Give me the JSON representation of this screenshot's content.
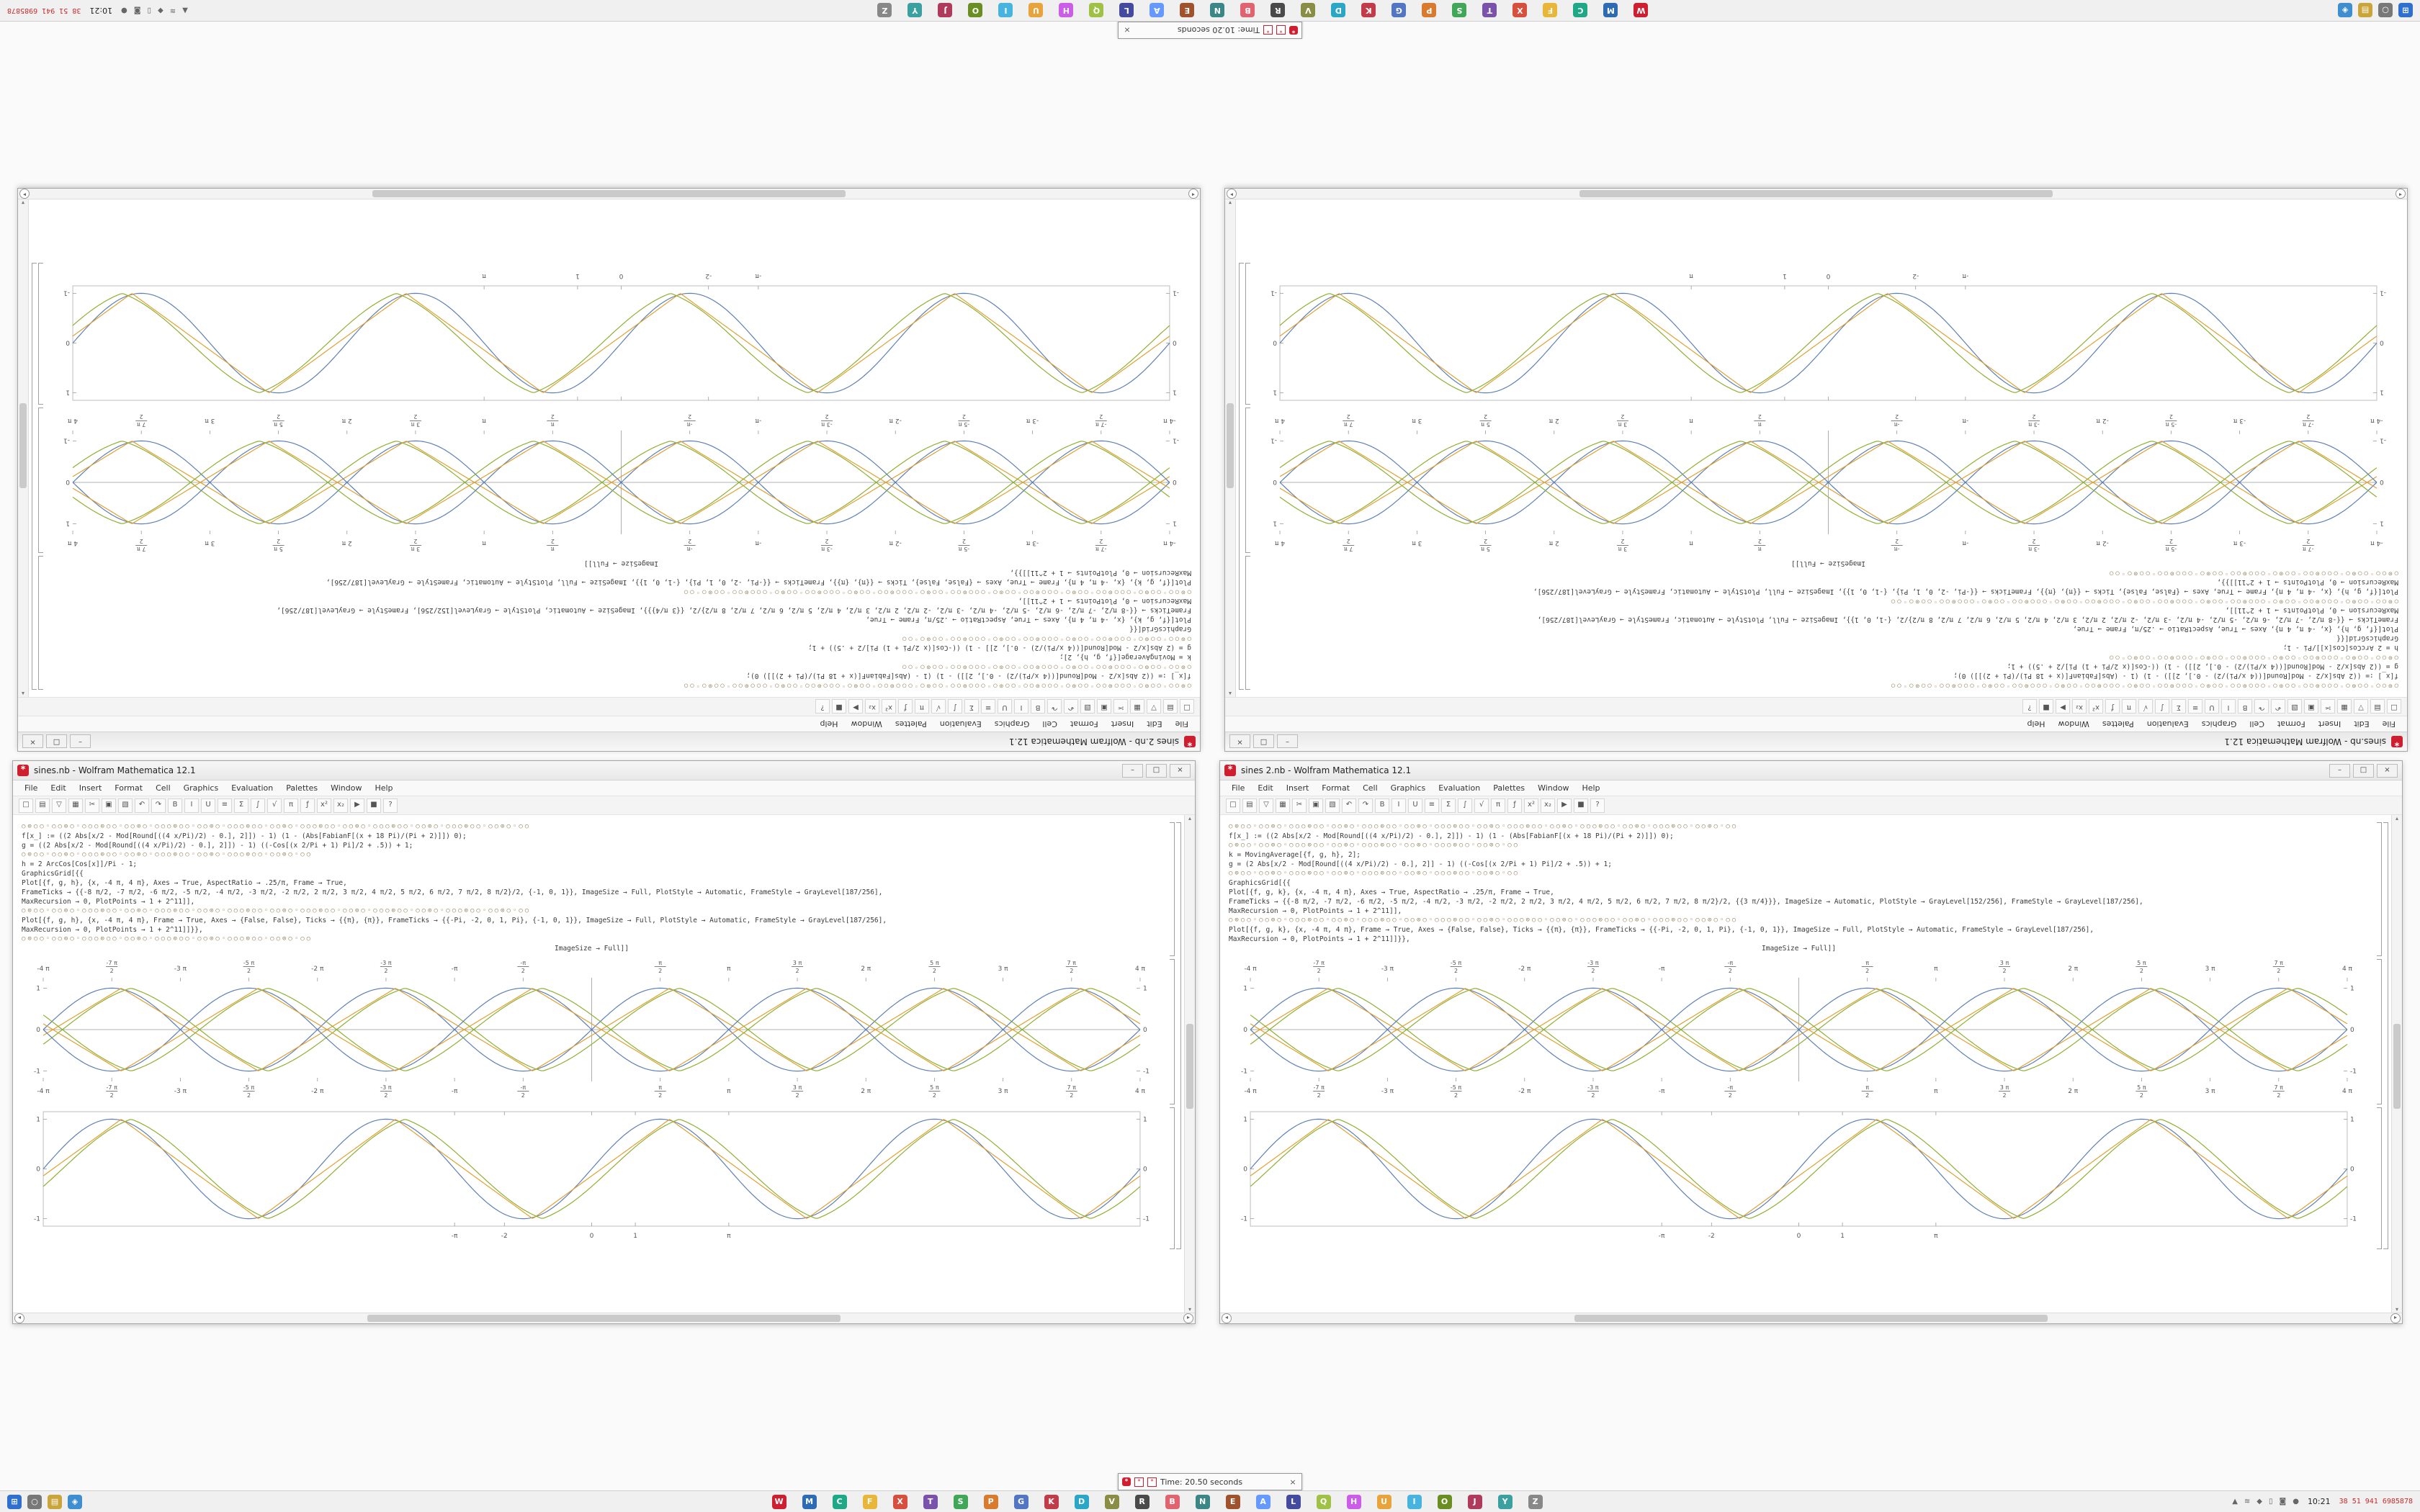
{
  "dialogs": {
    "bottom": {
      "title": "Time: 20.50 seconds"
    },
    "top": {
      "title": "Time: 10.20 seconds"
    },
    "close_glyph": "×",
    "spikey_glyph": "*"
  },
  "taskbar": {
    "left_icons": [
      {
        "name": "start-icon",
        "glyph": "⊞",
        "color": "#2f6fce"
      },
      {
        "name": "search-icon",
        "glyph": "○",
        "color": "#787878"
      },
      {
        "name": "files-icon",
        "glyph": "▤",
        "color": "#caa53a"
      },
      {
        "name": "browser-icon",
        "glyph": "◈",
        "color": "#3f8fd0"
      }
    ],
    "app_icons": [
      {
        "name": "taskbar-app-wolfram",
        "glyph": "W",
        "color": "#cf1e2f"
      },
      {
        "name": "taskbar-app-2",
        "glyph": "M",
        "color": "#2d6cb5"
      },
      {
        "name": "taskbar-app-3",
        "glyph": "C",
        "color": "#1fa885"
      },
      {
        "name": "taskbar-app-4",
        "glyph": "F",
        "color": "#e8b73a"
      },
      {
        "name": "taskbar-app-5",
        "glyph": "X",
        "color": "#d94f3d"
      },
      {
        "name": "taskbar-app-6",
        "glyph": "T",
        "color": "#7b52ab"
      },
      {
        "name": "taskbar-app-7",
        "glyph": "S",
        "color": "#3fa757"
      },
      {
        "name": "taskbar-app-8",
        "glyph": "P",
        "color": "#d97b2e"
      },
      {
        "name": "taskbar-app-9",
        "glyph": "G",
        "color": "#5276c3"
      },
      {
        "name": "taskbar-app-10",
        "glyph": "K",
        "color": "#c23b49"
      },
      {
        "name": "taskbar-app-11",
        "glyph": "D",
        "color": "#2aa7c7"
      },
      {
        "name": "taskbar-app-12",
        "glyph": "V",
        "color": "#8a8d44"
      },
      {
        "name": "taskbar-app-13",
        "glyph": "R",
        "color": "#4a4a4a"
      },
      {
        "name": "taskbar-app-14",
        "glyph": "B",
        "color": "#e0636f"
      },
      {
        "name": "taskbar-app-15",
        "glyph": "N",
        "color": "#3b8686"
      },
      {
        "name": "taskbar-app-16",
        "glyph": "E",
        "color": "#a0522d"
      },
      {
        "name": "taskbar-app-17",
        "glyph": "A",
        "color": "#6699ff"
      },
      {
        "name": "taskbar-app-18",
        "glyph": "L",
        "color": "#444a9f"
      },
      {
        "name": "taskbar-app-19",
        "glyph": "Q",
        "color": "#9fc246"
      },
      {
        "name": "taskbar-app-20",
        "glyph": "H",
        "color": "#cc5de8"
      },
      {
        "name": "taskbar-app-21",
        "glyph": "U",
        "color": "#e8a33a"
      },
      {
        "name": "taskbar-app-22",
        "glyph": "I",
        "color": "#47b4e0"
      },
      {
        "name": "taskbar-app-23",
        "glyph": "O",
        "color": "#6b8e23"
      },
      {
        "name": "taskbar-app-24",
        "glyph": "J",
        "color": "#b03a5b"
      },
      {
        "name": "taskbar-app-25",
        "glyph": "Y",
        "color": "#3aa0a0"
      },
      {
        "name": "taskbar-app-26",
        "glyph": "Z",
        "color": "#888888"
      }
    ],
    "tray_icons": [
      {
        "name": "tray-up-icon",
        "glyph": "▲"
      },
      {
        "name": "network-icon",
        "glyph": "≋"
      },
      {
        "name": "volume-icon",
        "glyph": "◆"
      },
      {
        "name": "battery-icon",
        "glyph": "▯"
      },
      {
        "name": "shield-icon",
        "glyph": "◙"
      },
      {
        "name": "update-icon",
        "glyph": "●"
      }
    ],
    "clock": "10:21",
    "stats": "38 51 941 6985878"
  },
  "window_chrome": {
    "menu": [
      "File",
      "Edit",
      "Insert",
      "Format",
      "Cell",
      "Graphics",
      "Evaluation",
      "Palettes",
      "Window",
      "Help"
    ],
    "toolbar_icons": [
      {
        "name": "new-notebook-icon",
        "glyph": "□"
      },
      {
        "name": "open-icon",
        "glyph": "▤"
      },
      {
        "name": "save-icon",
        "glyph": "▽"
      },
      {
        "name": "print-icon",
        "glyph": "▦"
      },
      {
        "name": "cut-icon",
        "glyph": "✂"
      },
      {
        "name": "copy-icon",
        "glyph": "▣"
      },
      {
        "name": "paste-icon",
        "glyph": "▧"
      },
      {
        "name": "undo-icon",
        "glyph": "↶"
      },
      {
        "name": "redo-icon",
        "glyph": "↷"
      },
      {
        "name": "bold-icon",
        "glyph": "B"
      },
      {
        "name": "italic-icon",
        "glyph": "I"
      },
      {
        "name": "underline-icon",
        "glyph": "U"
      },
      {
        "name": "align-icon",
        "glyph": "≡"
      },
      {
        "name": "sum-icon",
        "glyph": "Σ"
      },
      {
        "name": "integral-icon",
        "glyph": "∫"
      },
      {
        "name": "sqrt-icon",
        "glyph": "√"
      },
      {
        "name": "pi-icon",
        "glyph": "π"
      },
      {
        "name": "function-icon",
        "glyph": "ƒ"
      },
      {
        "name": "superscript-icon",
        "glyph": "x²"
      },
      {
        "name": "subscript-icon",
        "glyph": "x₂"
      },
      {
        "name": "evaluate-icon",
        "glyph": "▶"
      },
      {
        "name": "abort-icon",
        "glyph": "■"
      },
      {
        "name": "help-icon",
        "glyph": "?"
      }
    ],
    "window_buttons": [
      {
        "name": "minimize-button",
        "glyph": "–"
      },
      {
        "name": "maximize-button",
        "glyph": "□"
      },
      {
        "name": "close-button",
        "glyph": "×"
      }
    ],
    "scroll_up_glyph": "▴",
    "scroll_down_glyph": "▾",
    "scroll_left_glyph": "◂",
    "scroll_right_glyph": "▸"
  },
  "windows": [
    {
      "title": "sines.nb - Wolfram Mathematica 12.1",
      "code": [
        {
          "kind": "beads",
          "t": "○⊙○○◦○○⊙○◦○○○⊙○○◦○○⊙○◦○○○⊙○○◦○○⊙○◦○○○⊙○○◦○○⊙○◦○○○⊙○○◦○○⊙○◦○○○⊙○○◦○○⊙○◦○○○⊙○○◦○○⊙○◦○○"
        },
        {
          "kind": "code",
          "t": "f[x_] := ((2 Abs[x/2 - Mod[Round[((4 x/Pi)/2) - 0.], 2]]) - 1) (1 - (Abs[FabianF[(x + 18 Pi)/(Pi + 2)]]) 0);"
        },
        {
          "kind": "code",
          "t": "g = ((2 Abs[x/2 - Mod[Round[((4 x/Pi)/2) - 0.], 2]]) - 1) ((-Cos[(x 2/Pi + 1) Pi]/2 + .5)) + 1;"
        },
        {
          "kind": "beads",
          "t": "○⊙○○◦○○⊙○◦○○○⊙○○◦○○⊙○◦○○○⊙○○◦○○⊙○◦○○○⊙○○◦○○⊙○◦○○"
        },
        {
          "kind": "code",
          "t": "h = 2 ArcCos[Cos[x]]/Pi - 1;"
        },
        {
          "kind": "code",
          "t": "GraphicsGrid[{{"
        },
        {
          "kind": "code",
          "t": "Plot[{f, g, h}, {x, -4 π, 4 π}, Axes → True, AspectRatio → .25/π, Frame → True,"
        },
        {
          "kind": "code",
          "t": "FrameTicks → {{-8 π/2, -7 π/2, -6 π/2, -5 π/2, -4 π/2, -3 π/2, -2 π/2, 2 π/2, 3 π/2, 4 π/2, 5 π/2, 6 π/2, 7 π/2, 8 π/2}/2, {-1, 0, 1}}, ImageSize → Full, PlotStyle → Automatic, FrameStyle → GrayLevel[187/256],"
        },
        {
          "kind": "code",
          "t": "MaxRecursion → 0, PlotPoints → 1 + 2^11]],"
        },
        {
          "kind": "beads",
          "t": "○⊙○○◦○○⊙○◦○○○⊙○○◦○○⊙○◦○○○⊙○○◦○○⊙○◦○○○⊙○○◦○○⊙○◦○○○⊙○○◦○○⊙○◦○○○⊙○○◦○○⊙○◦○○○⊙○○◦○○⊙○◦○○"
        },
        {
          "kind": "code",
          "t": "Plot[{f, g, h}, {x, -4 π, 4 π}, Frame → True, Axes → {False, False}, Ticks → {{π}, {π}}, FrameTicks → {{-Pi, -2, 0, 1, Pi}, {-1, 0, 1}}, ImageSize → Full, PlotStyle → Automatic, FrameStyle → GrayLevel[187/256],"
        },
        {
          "kind": "code",
          "t": "MaxRecursion → 0, PlotPoints → 1 + 2^11]]}},"
        },
        {
          "kind": "beads",
          "t": "○⊙○○◦○○⊙○◦○○○⊙○○◦○○⊙○◦○○○⊙○○◦○○⊙○◦○○○⊙○○◦○○⊙○◦○○"
        },
        {
          "kind": "tail",
          "t": "ImageSize → Full]]"
        }
      ]
    },
    {
      "title": "sines 2.nb - Wolfram Mathematica 12.1",
      "code": [
        {
          "kind": "beads",
          "t": "○⊙○○◦○○⊙○◦○○○⊙○○◦○○⊙○◦○○○⊙○○◦○○⊙○◦○○○⊙○○◦○○⊙○◦○○○⊙○○◦○○⊙○◦○○○⊙○○◦○○⊙○◦○○○⊙○○◦○○⊙○◦○○"
        },
        {
          "kind": "code",
          "t": "f[x_] := ((2 Abs[x/2 - Mod[Round[((4 x/Pi)/2) - 0.], 2]]) - 1) (1 - (Abs[FabianF[(x + 18 Pi)/(Pi + 2)]]) 0);"
        },
        {
          "kind": "beads",
          "t": "○⊙○○◦○○⊙○◦○○○⊙○○◦○○⊙○◦○○○⊙○○◦○○⊙○◦○○○⊙○○◦○○⊙○◦○○"
        },
        {
          "kind": "code",
          "t": "k = MovingAverage[{f, g, h}, 2];"
        },
        {
          "kind": "code",
          "t": "g = (2 Abs[x/2 - Mod[Round[((4 x/Pi)/2) - 0.], 2]] - 1) ((-Cos[(x 2/Pi + 1) Pi]/2 + .5)) + 1;"
        },
        {
          "kind": "beads",
          "t": "○⊙○○◦○○⊙○◦○○○⊙○○◦○○⊙○◦○○○⊙○○◦○○⊙○◦○○○⊙○○◦○○⊙○◦○○"
        },
        {
          "kind": "code",
          "t": "GraphicsGrid[{{"
        },
        {
          "kind": "code",
          "t": "Plot[{f, g, k}, {x, -4 π, 4 π}, Axes → True, AspectRatio → .25/π, Frame → True,"
        },
        {
          "kind": "code",
          "t": "FrameTicks → {{-8 π/2, -7 π/2, -6 π/2, -5 π/2, -4 π/2, -3 π/2, -2 π/2, 2 π/2, 3 π/2, 4 π/2, 5 π/2, 6 π/2, 7 π/2, 8 π/2}/2, {{3 π/4}}}, ImageSize → Automatic, PlotStyle → GrayLevel[152/256], FrameStyle → GrayLevel[187/256],"
        },
        {
          "kind": "code",
          "t": "MaxRecursion → 0, PlotPoints → 1 + 2^11]],"
        },
        {
          "kind": "beads",
          "t": "○⊙○○◦○○⊙○◦○○○⊙○○◦○○⊙○◦○○○⊙○○◦○○⊙○◦○○○⊙○○◦○○⊙○◦○○○⊙○○◦○○⊙○◦○○○⊙○○◦○○⊙○◦○○○⊙○○◦○○⊙○◦○○"
        },
        {
          "kind": "code",
          "t": "Plot[{f, g, k}, {x, -4 π, 4 π}, Frame → True, Axes → {False, False}, Ticks → {{π}, {π}}, FrameTicks → {{-Pi, -2, 0, 1, Pi}, {-1, 0, 1}}, ImageSize → Full, PlotStyle → Automatic, FrameStyle → GrayLevel[187/256],"
        },
        {
          "kind": "code",
          "t": "MaxRecursion → 0, PlotPoints → 1 + 2^11]]}},"
        },
        {
          "kind": "tail",
          "t": "ImageSize → Full]]"
        }
      ]
    }
  ],
  "chart_data": [
    {
      "type": "line",
      "title": "",
      "xlabel": "",
      "ylabel": "",
      "frame": false,
      "axes": true,
      "label_sides": [
        "top",
        "bottom"
      ],
      "x_range": [
        -12.566,
        12.566
      ],
      "y_range": [
        -1.25,
        1.25
      ],
      "samples": 480,
      "series": [
        {
          "name": "sin(x)",
          "fn": "sin",
          "sign": 1,
          "phase": 0,
          "color": "#5e81b5"
        },
        {
          "name": "triangle(x)",
          "fn": "tri",
          "sign": 1,
          "phase": -0.22,
          "color": "#e0a030"
        },
        {
          "name": "blend(x)",
          "fn": "mix",
          "sign": 1,
          "phase": -0.44,
          "color": "#8fb032"
        },
        {
          "name": "-sin(x)",
          "fn": "sin",
          "sign": -1,
          "phase": 0,
          "color": "#5e81b5"
        },
        {
          "name": "-triangle(x)",
          "fn": "tri",
          "sign": -1,
          "phase": -0.22,
          "color": "#e0a030"
        },
        {
          "name": "-blend(x)",
          "fn": "mix",
          "sign": -1,
          "phase": -0.44,
          "color": "#8fb032"
        }
      ],
      "x_ticks": [
        {
          "pi": -4,
          "label": "-4 π"
        },
        {
          "pi": -3.5,
          "num": "7 π",
          "den": "2",
          "neg": true
        },
        {
          "pi": -3,
          "label": "-3 π"
        },
        {
          "pi": -2.5,
          "num": "5 π",
          "den": "2",
          "neg": true
        },
        {
          "pi": -2,
          "label": "-2 π"
        },
        {
          "pi": -1.5,
          "num": "3 π",
          "den": "2",
          "neg": true
        },
        {
          "pi": -1,
          "label": "-π"
        },
        {
          "pi": -0.5,
          "num": "π",
          "den": "2",
          "neg": true
        },
        {
          "pi": 0.5,
          "num": "π",
          "den": "2"
        },
        {
          "pi": 1,
          "label": "π"
        },
        {
          "pi": 1.5,
          "num": "3 π",
          "den": "2"
        },
        {
          "pi": 2,
          "label": "2 π"
        },
        {
          "pi": 2.5,
          "num": "5 π",
          "den": "2"
        },
        {
          "pi": 3,
          "label": "3 π"
        },
        {
          "pi": 3.5,
          "num": "7 π",
          "den": "2"
        },
        {
          "pi": 4,
          "label": "4 π"
        }
      ],
      "y_ticks": [
        {
          "v": -1,
          "label": "-1"
        },
        {
          "v": 0,
          "label": "0"
        },
        {
          "v": 1,
          "label": "1"
        }
      ]
    },
    {
      "type": "line",
      "title": "",
      "xlabel": "",
      "ylabel": "",
      "frame": true,
      "axes": false,
      "label_sides": [
        "bottom"
      ],
      "x_range": [
        -12.566,
        12.566
      ],
      "y_range": [
        -1.15,
        1.15
      ],
      "samples": 480,
      "series": [
        {
          "name": "sin(x)",
          "fn": "sin",
          "sign": 1,
          "phase": 0,
          "color": "#5e81b5"
        },
        {
          "name": "triangle(x)",
          "fn": "tri",
          "sign": 1,
          "phase": -0.22,
          "color": "#e0a030"
        },
        {
          "name": "blend(x)",
          "fn": "mix",
          "sign": 1,
          "phase": -0.44,
          "color": "#8fb032"
        }
      ],
      "x_ticks": [
        {
          "v": -3.14159,
          "label": "-π"
        },
        {
          "v": -2,
          "label": "-2"
        },
        {
          "v": 0,
          "label": "0"
        },
        {
          "v": 1,
          "label": "1"
        },
        {
          "v": 3.14159,
          "label": "π"
        }
      ],
      "y_ticks": [
        {
          "v": -1,
          "label": "-1"
        },
        {
          "v": 0,
          "label": "0"
        },
        {
          "v": 1,
          "label": "1"
        }
      ]
    }
  ]
}
